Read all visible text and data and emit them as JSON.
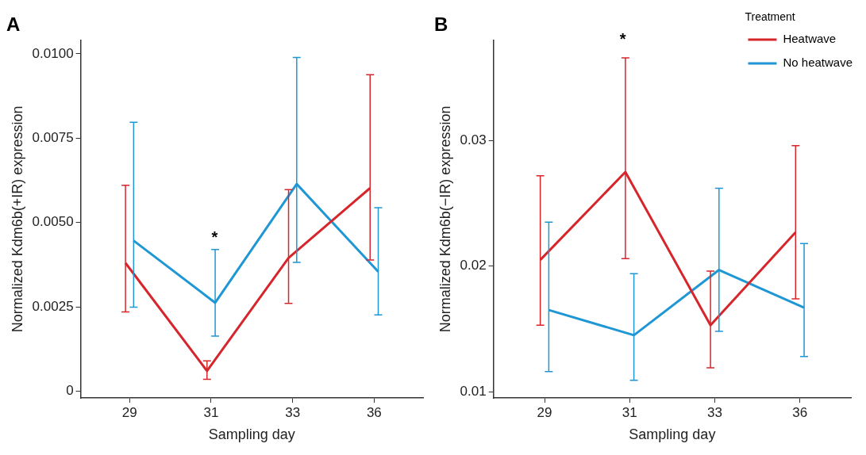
{
  "chart_data": [
    {
      "type": "line",
      "title": "A",
      "xlabel": "Sampling day",
      "ylabel": "Normalized Kdm6b(+IR) expression",
      "categories": [
        "29",
        "31",
        "33",
        "36"
      ],
      "ylim": [
        -0.0002,
        0.0104
      ],
      "yticks": [
        {
          "value": 0,
          "label": "0"
        },
        0.0025,
        {
          "value": 0.005,
          "label": "0.0050"
        },
        0.0075,
        {
          "value": 0.01,
          "label": "0.0100"
        }
      ],
      "legend": false,
      "annotations": [
        "*"
      ],
      "series": [
        {
          "color": "#d7262b",
          "values": [
            0.0038,
            0.0006,
            0.00395,
            0.00602
          ],
          "errors": [
            [
              0.00235,
              0.0061
            ],
            [
              0.00035,
              0.0009
            ],
            [
              0.0026,
              0.00597
            ],
            [
              0.00389,
              0.00938
            ]
          ]
        },
        {
          "color": "#1f97d4",
          "values": [
            0.00446,
            0.00262,
            0.00614,
            0.00354
          ],
          "errors": [
            [
              0.00249,
              0.00797
            ],
            [
              0.00163,
              0.0042
            ],
            [
              0.00382,
              0.00989
            ],
            [
              0.00226,
              0.00544
            ]
          ]
        }
      ]
    },
    {
      "type": "line",
      "title": "B",
      "xlabel": "Sampling day",
      "ylabel": "Normalized Kdm6b(−IR) expression",
      "categories": [
        "29",
        "31",
        "33",
        "36"
      ],
      "ylim": [
        0.0095,
        0.038
      ],
      "yticks": [
        0.01,
        0.02,
        0.03
      ],
      "legend": "top right",
      "legend_title": "Treatment",
      "annotations": [
        "*"
      ],
      "series": [
        {
          "name": "Heatwave",
          "color": "#d7262b",
          "values": [
            0.0205,
            0.0275,
            0.0153,
            0.0227
          ],
          "errors": [
            [
              0.0153,
              0.0272
            ],
            [
              0.0206,
              0.0366
            ],
            [
              0.0119,
              0.0196
            ],
            [
              0.0174,
              0.0296
            ]
          ]
        },
        {
          "name": "No heatwave",
          "color": "#1f97d4",
          "values": [
            0.0165,
            0.0145,
            0.0197,
            0.0167
          ],
          "errors": [
            [
              0.0116,
              0.0235
            ],
            [
              0.0109,
              0.0194
            ],
            [
              0.0148,
              0.0262
            ],
            [
              0.0128,
              0.0218
            ]
          ]
        }
      ]
    }
  ]
}
